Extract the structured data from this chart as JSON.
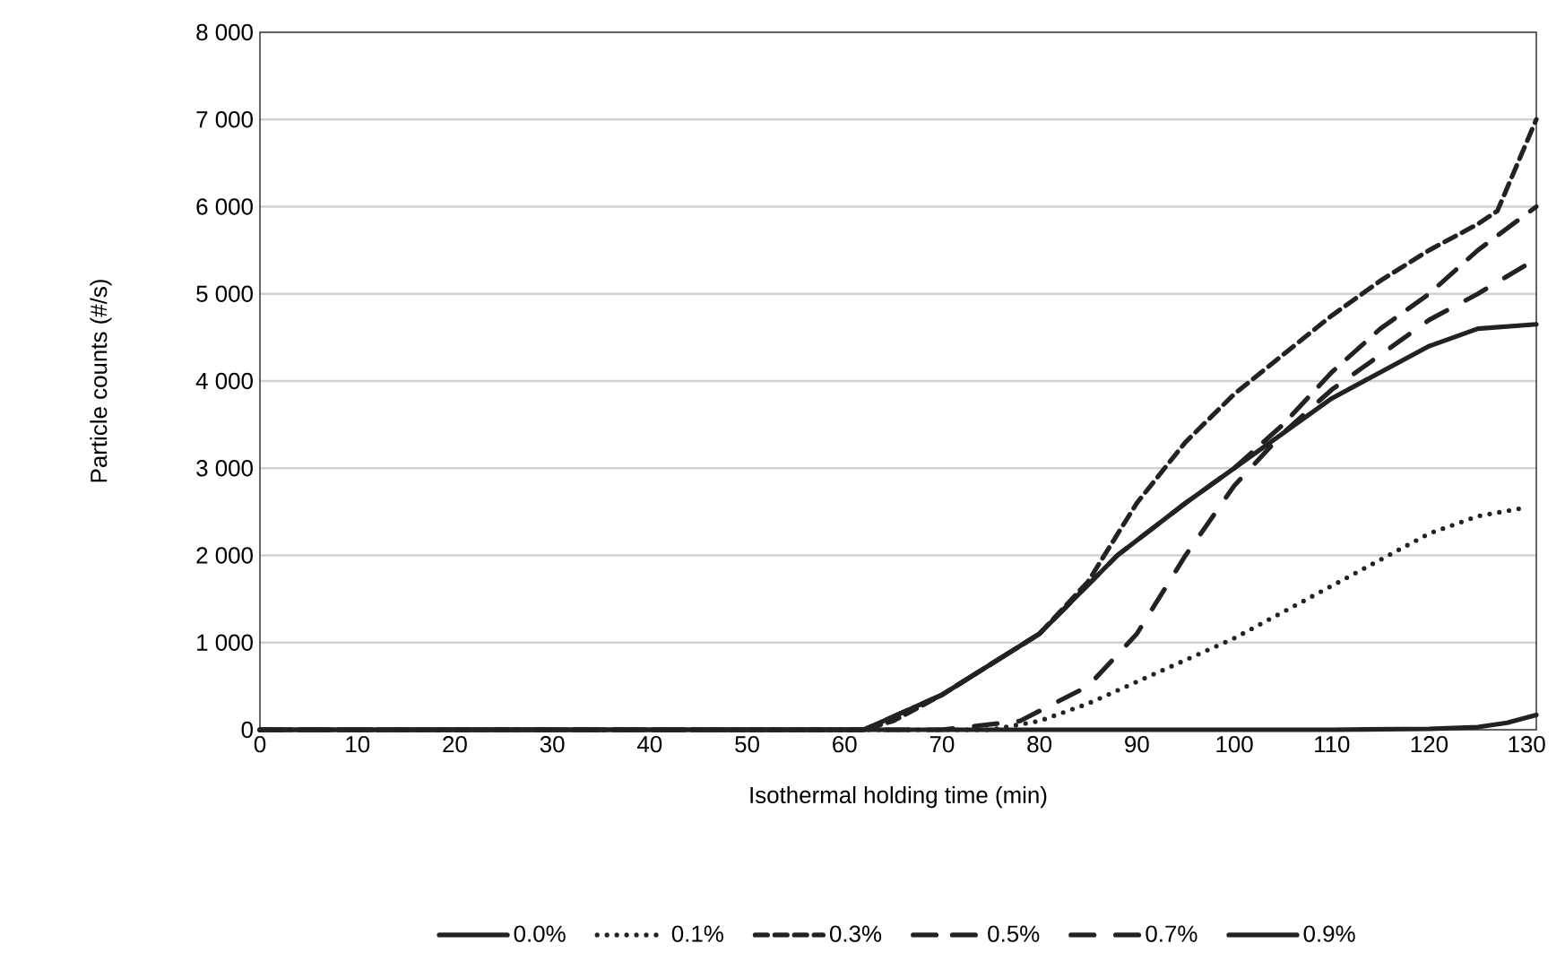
{
  "chart_data": {
    "type": "line",
    "xlabel": "Isothermal holding time (min)",
    "ylabel": "Particle counts (#/s)",
    "xlim": [
      0,
      131
    ],
    "xticks": [
      0,
      10,
      20,
      30,
      40,
      50,
      60,
      70,
      80,
      90,
      100,
      110,
      120,
      130
    ],
    "ylim": [
      0,
      8000
    ],
    "yticks": [
      0,
      {
        "value": 1000,
        "label": "1 000"
      },
      {
        "value": 2000,
        "label": "2 000"
      },
      {
        "value": 3000,
        "label": "3 000"
      },
      {
        "value": 4000,
        "label": "4 000"
      },
      {
        "value": 5000,
        "label": "5 000"
      },
      {
        "value": 6000,
        "label": "6 000"
      },
      {
        "value": 7000,
        "label": "7 000"
      },
      {
        "value": 8000,
        "label": "8 000"
      }
    ],
    "grid": "y",
    "legend": "bottom",
    "marker": "none",
    "series": [
      {
        "name": "0.0%",
        "color": "#222222",
        "line_style": "solid",
        "x": [
          0,
          20,
          40,
          60,
          80,
          100,
          110,
          120,
          125,
          128,
          131
        ],
        "values": [
          0,
          0,
          0,
          0,
          0,
          0,
          0,
          10,
          30,
          80,
          170
        ]
      },
      {
        "name": "0.1%",
        "color": "#222222",
        "line_style": "dotted",
        "x": [
          0,
          40,
          75,
          80,
          85,
          90,
          95,
          100,
          105,
          110,
          115,
          120,
          125,
          130
        ],
        "values": [
          0,
          0,
          0,
          100,
          300,
          550,
          800,
          1050,
          1350,
          1650,
          1950,
          2250,
          2450,
          2550
        ]
      },
      {
        "name": "0.3%",
        "color": "#222222",
        "line_style": "dashed",
        "x": [
          0,
          40,
          62,
          65,
          70,
          75,
          80,
          85,
          90,
          95,
          100,
          105,
          110,
          115,
          120,
          125,
          127,
          131
        ],
        "values": [
          0,
          0,
          0,
          100,
          400,
          750,
          1100,
          1700,
          2600,
          3300,
          3850,
          4300,
          4750,
          5150,
          5500,
          5800,
          5950,
          7000
        ]
      },
      {
        "name": "0.5%",
        "color": "#222222",
        "line_style": "long dashed",
        "x": [
          0,
          40,
          62,
          70,
          80,
          88,
          95,
          100,
          105,
          110,
          115,
          120,
          125,
          131
        ],
        "values": [
          0,
          0,
          0,
          400,
          1100,
          2000,
          2600,
          3000,
          3500,
          4100,
          4600,
          5000,
          5500,
          6000
        ]
      },
      {
        "name": "0.7%",
        "color": "#222222",
        "line_style": "dash dot",
        "x": [
          0,
          40,
          70,
          78,
          85,
          90,
          95,
          100,
          105,
          110,
          115,
          120,
          125,
          131
        ],
        "values": [
          0,
          0,
          0,
          100,
          500,
          1100,
          2000,
          2800,
          3400,
          3900,
          4300,
          4700,
          5000,
          5400
        ]
      },
      {
        "name": "0.9%",
        "color": "#222222",
        "line_style": "solid",
        "x": [
          0,
          40,
          62,
          70,
          80,
          88,
          95,
          100,
          105,
          110,
          115,
          120,
          125,
          131
        ],
        "values": [
          0,
          0,
          0,
          400,
          1100,
          2000,
          2600,
          3000,
          3400,
          3800,
          4100,
          4400,
          4600,
          4650
        ]
      }
    ]
  }
}
